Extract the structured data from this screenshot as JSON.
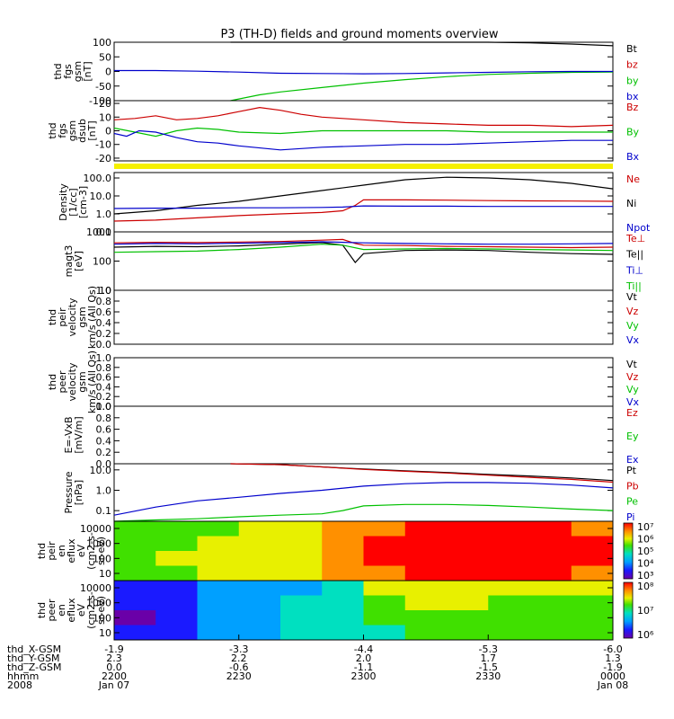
{
  "title": "P3 (TH-D) fields and ground moments overview",
  "chart_data": [
    {
      "type": "line",
      "ylabel": [
        "thd",
        "fgs",
        "gsm",
        "[nT]"
      ],
      "yticks": [
        "100",
        "50",
        "0",
        "-50",
        "-100"
      ],
      "ylim": [
        -100,
        100
      ],
      "yscale": "linear",
      "series": [
        {
          "name": "Bt",
          "color": "#000000",
          "x": [
            2228,
            2240,
            2250,
            2300,
            2310,
            2320,
            2330,
            2340,
            2350,
            2400
          ],
          "y": [
            100,
            100,
            100,
            100,
            100,
            100,
            100,
            98,
            94,
            88
          ]
        },
        {
          "name": "bz",
          "color": "#cc0000",
          "x": [],
          "y": []
        },
        {
          "name": "by",
          "color": "#00c000",
          "x": [
            2228,
            2235,
            2240,
            2250,
            2300,
            2310,
            2320,
            2330,
            2340,
            2350,
            2400
          ],
          "y": [
            -100,
            -80,
            -70,
            -55,
            -40,
            -28,
            -18,
            -10,
            -6,
            -3,
            -2
          ]
        },
        {
          "name": "bx",
          "color": "#0000cc",
          "x": [
            2200,
            2210,
            2220,
            2230,
            2240,
            2250,
            2300,
            2310,
            2320,
            2330,
            2340,
            2350,
            2400
          ],
          "y": [
            3,
            3,
            1,
            -2,
            -6,
            -7,
            -8,
            -7,
            -5,
            -3,
            -1,
            0,
            0
          ]
        }
      ]
    },
    {
      "type": "line",
      "ylabel": [
        "thd",
        "fgs",
        "gsm",
        "dsub",
        "[nT]"
      ],
      "yticks": [
        "20",
        "10",
        "0",
        "-10",
        "-20"
      ],
      "ylim": [
        -22,
        22
      ],
      "yscale": "linear",
      "series": [
        {
          "name": "Bz",
          "color": "#cc0000",
          "x": [
            2200,
            2205,
            2210,
            2215,
            2220,
            2225,
            2230,
            2235,
            2240,
            2245,
            2250,
            2255,
            2300,
            2310,
            2320,
            2330,
            2340,
            2350,
            2400
          ],
          "y": [
            8,
            9,
            11,
            8,
            9,
            11,
            14,
            17,
            15,
            12,
            10,
            9,
            8,
            6,
            5,
            4,
            4,
            3,
            4
          ]
        },
        {
          "name": "By",
          "color": "#00c000",
          "x": [
            2200,
            2205,
            2210,
            2215,
            2220,
            2225,
            2230,
            2240,
            2250,
            2300,
            2310,
            2320,
            2330,
            2340,
            2350,
            2400
          ],
          "y": [
            2,
            -1,
            -4,
            0,
            2,
            1,
            -1,
            -2,
            0,
            0,
            0,
            0,
            -1,
            -1,
            -1,
            -1
          ]
        },
        {
          "name": "Bx",
          "color": "#0000cc",
          "x": [
            2200,
            2203,
            2206,
            2210,
            2215,
            2220,
            2225,
            2230,
            2240,
            2250,
            2300,
            2310,
            2320,
            2330,
            2340,
            2350,
            2400
          ],
          "y": [
            -2,
            -4,
            0,
            -1,
            -5,
            -8,
            -9,
            -11,
            -14,
            -12,
            -11,
            -10,
            -10,
            -9,
            -8,
            -7,
            -7
          ]
        }
      ]
    },
    {
      "type": "line",
      "ylabel": [
        "Density",
        "[1/cc]",
        "[cm-3]"
      ],
      "yticks": [
        "100.0",
        "10.0",
        "1.0",
        "0.1"
      ],
      "ylim": [
        0.1,
        200
      ],
      "yscale": "log",
      "series": [
        {
          "name": "Ne",
          "color": "#cc0000",
          "x": [
            2200,
            2210,
            2220,
            2230,
            2240,
            2250,
            2255,
            2258,
            2300,
            2310,
            2320,
            2330,
            2340,
            2350,
            2400
          ],
          "y": [
            0.4,
            0.45,
            0.6,
            0.8,
            1.0,
            1.2,
            1.5,
            3,
            6,
            6,
            5.8,
            5.5,
            5.3,
            5.2,
            5
          ]
        },
        {
          "name": "Ni",
          "color": "#000000",
          "x": [
            2200,
            2210,
            2220,
            2230,
            2240,
            2250,
            2300,
            2310,
            2320,
            2330,
            2340,
            2350,
            2400
          ],
          "y": [
            1.0,
            1.5,
            3,
            5,
            10,
            20,
            40,
            80,
            110,
            100,
            80,
            50,
            25
          ]
        },
        {
          "name": "Npot",
          "color": "#0000cc",
          "x": [
            2200,
            2210,
            2220,
            2230,
            2240,
            2250,
            2255,
            2300,
            2310,
            2320,
            2330,
            2340,
            2350,
            2400
          ],
          "y": [
            2.0,
            2.1,
            2.1,
            2.2,
            2.2,
            2.3,
            2.4,
            2.8,
            2.7,
            2.7,
            2.6,
            2.6,
            2.6,
            2.6
          ]
        }
      ]
    },
    {
      "type": "line",
      "ylabel": [
        "magt3",
        "[eV]"
      ],
      "yticks": [
        "1000",
        "100",
        "10"
      ],
      "ylim": [
        10,
        1000
      ],
      "yscale": "log",
      "series": [
        {
          "name": "Te⊥",
          "color": "#cc0000",
          "x": [
            2200,
            2210,
            2220,
            2230,
            2240,
            2250,
            2255,
            2258,
            2300,
            2310,
            2320,
            2330,
            2340,
            2350,
            2400
          ],
          "y": [
            420,
            440,
            430,
            450,
            470,
            520,
            550,
            400,
            350,
            340,
            320,
            310,
            300,
            290,
            300
          ]
        },
        {
          "name": "Te||",
          "color": "#000000",
          "x": [
            2200,
            2210,
            2220,
            2230,
            2240,
            2250,
            2255,
            2258,
            2300,
            2310,
            2320,
            2330,
            2340,
            2350,
            2400
          ],
          "y": [
            300,
            320,
            310,
            330,
            380,
            430,
            350,
            90,
            180,
            230,
            240,
            230,
            200,
            180,
            170
          ]
        },
        {
          "name": "Ti⊥",
          "color": "#0000cc",
          "x": [
            2200,
            2210,
            2220,
            2230,
            2240,
            2250,
            2300,
            2310,
            2320,
            2330,
            2340,
            2350,
            2400
          ],
          "y": [
            380,
            400,
            390,
            410,
            430,
            460,
            420,
            400,
            390,
            380,
            380,
            390,
            400
          ]
        },
        {
          "name": "Ti||",
          "color": "#00c000",
          "x": [
            2200,
            2210,
            2220,
            2230,
            2240,
            2250,
            2255,
            2300,
            2310,
            2320,
            2330,
            2340,
            2350,
            2400
          ],
          "y": [
            200,
            210,
            220,
            250,
            300,
            380,
            350,
            250,
            260,
            270,
            260,
            250,
            240,
            230
          ]
        }
      ]
    },
    {
      "type": "line",
      "ylabel": [
        "thd",
        "peir",
        "velocity",
        "gsm",
        "km/s (All Qs)"
      ],
      "yticks": [
        "1.0",
        "0.8",
        "0.6",
        "0.4",
        "0.2",
        "0.0"
      ],
      "ylim": [
        0,
        1
      ],
      "yscale": "linear",
      "series": [
        {
          "name": "Vt",
          "color": "#000000",
          "x": [],
          "y": []
        },
        {
          "name": "Vz",
          "color": "#cc0000",
          "x": [],
          "y": []
        },
        {
          "name": "Vy",
          "color": "#00c000",
          "x": [],
          "y": []
        },
        {
          "name": "Vx",
          "color": "#0000cc",
          "x": [],
          "y": []
        }
      ]
    },
    {
      "type": "line",
      "ylabel": [
        "thd",
        "peer",
        "velocity",
        "gsm",
        "km/s (All Qs)"
      ],
      "yticks": [
        "1.0",
        "0.8",
        "0.6",
        "0.4",
        "0.2",
        "0.0"
      ],
      "ylim": [
        0,
        1
      ],
      "yscale": "linear",
      "series": [
        {
          "name": "Vt",
          "color": "#000000",
          "x": [],
          "y": []
        },
        {
          "name": "Vz",
          "color": "#cc0000",
          "x": [],
          "y": []
        },
        {
          "name": "Vy",
          "color": "#00c000",
          "x": [],
          "y": []
        },
        {
          "name": "Vx",
          "color": "#0000cc",
          "x": [],
          "y": []
        }
      ]
    },
    {
      "type": "line",
      "ylabel": [
        "E=-VxB",
        "[mV/m]"
      ],
      "yticks": [
        "1.0",
        "0.8",
        "0.6",
        "0.4",
        "0.2",
        "0.0"
      ],
      "ylim": [
        0,
        1
      ],
      "yscale": "linear",
      "series": [
        {
          "name": "Ez",
          "color": "#cc0000",
          "x": [],
          "y": []
        },
        {
          "name": "Ey",
          "color": "#00c000",
          "x": [],
          "y": []
        },
        {
          "name": "Ex",
          "color": "#0000cc",
          "x": [],
          "y": []
        }
      ]
    },
    {
      "type": "line",
      "ylabel": [
        "Pressure",
        "[nPa]"
      ],
      "yticks": [
        "10.0",
        "1.0",
        "0.1"
      ],
      "ylim": [
        0.03,
        20
      ],
      "yscale": "log",
      "series": [
        {
          "name": "Pt",
          "color": "#000000",
          "x": [
            2228,
            2240,
            2250,
            2300,
            2310,
            2320,
            2330,
            2340,
            2350,
            2400
          ],
          "y": [
            22,
            18,
            14,
            11,
            9,
            7.5,
            6,
            5,
            4,
            3
          ]
        },
        {
          "name": "Pb",
          "color": "#cc0000",
          "x": [
            2228,
            2240,
            2250,
            2300,
            2310,
            2320,
            2330,
            2340,
            2350,
            2400
          ],
          "y": [
            22,
            18,
            14,
            10.5,
            8.5,
            7,
            5.5,
            4.3,
            3.4,
            2.5
          ]
        },
        {
          "name": "Pe",
          "color": "#00c000",
          "x": [
            2200,
            2210,
            2220,
            2230,
            2240,
            2250,
            2255,
            2300,
            2310,
            2320,
            2330,
            2340,
            2350,
            2400
          ],
          "y": [
            0.03,
            0.035,
            0.04,
            0.05,
            0.06,
            0.07,
            0.1,
            0.17,
            0.2,
            0.2,
            0.18,
            0.15,
            0.12,
            0.1
          ]
        },
        {
          "name": "Pi",
          "color": "#0000cc",
          "x": [
            2200,
            2210,
            2220,
            2230,
            2240,
            2250,
            2300,
            2310,
            2320,
            2330,
            2340,
            2350,
            2400
          ],
          "y": [
            0.06,
            0.15,
            0.3,
            0.45,
            0.7,
            1.0,
            1.6,
            2.1,
            2.4,
            2.4,
            2.2,
            1.8,
            1.3
          ]
        }
      ]
    },
    {
      "type": "heatmap",
      "ylabel": [
        "thd",
        "peir",
        "en",
        "eflux",
        "eV",
        "(cm2-s-",
        "sr-eV)"
      ],
      "yticks": [
        "10000",
        "1000",
        "100",
        "10"
      ],
      "colorbar_ticks": [
        "10⁷",
        "10⁶",
        "10⁵",
        "10⁴",
        "10³"
      ],
      "zlog_range": [
        2.8,
        7.2
      ],
      "x": [
        2200,
        2210,
        2220,
        2230,
        2240,
        2250,
        2300,
        2310,
        2320,
        2330,
        2340,
        2350,
        2400
      ],
      "y_levels": [
        "10000",
        "1000",
        "100",
        "10"
      ],
      "z_log": [
        [
          5.2,
          5.4,
          5.6,
          5.9,
          6.1,
          6.6,
          6.8,
          6.9,
          7.0,
          6.9,
          6.9,
          6.8,
          6.6
        ],
        [
          5.4,
          5.6,
          5.8,
          6.0,
          6.2,
          6.7,
          6.9,
          7.0,
          7.0,
          7.0,
          7.0,
          6.9,
          6.8
        ],
        [
          5.5,
          5.7,
          5.9,
          6.0,
          6.2,
          6.7,
          6.9,
          6.9,
          7.0,
          6.9,
          6.9,
          6.9,
          6.8
        ],
        [
          5.3,
          5.5,
          5.8,
          6.0,
          6.1,
          6.6,
          6.8,
          6.9,
          6.9,
          6.9,
          6.9,
          6.8,
          6.7
        ]
      ]
    },
    {
      "type": "heatmap",
      "ylabel": [
        "thd",
        "peer",
        "en",
        "eflux",
        "eV",
        "(cm2-s-",
        "sr-eV)"
      ],
      "yticks": [
        "10000",
        "1000",
        "100",
        "10"
      ],
      "colorbar_ticks": [
        "10⁸",
        "10⁷",
        "10⁶"
      ],
      "zlog_range": [
        5.6,
        8.6
      ],
      "x": [
        2200,
        2210,
        2220,
        2230,
        2240,
        2250,
        2300,
        2310,
        2320,
        2330,
        2340,
        2350,
        2400
      ],
      "y_levels": [
        "10000",
        "1000",
        "100",
        "10"
      ],
      "z_log": [
        [
          6.0,
          6.1,
          6.3,
          6.5,
          6.6,
          6.8,
          7.8,
          7.9,
          7.9,
          7.8,
          7.8,
          7.7,
          7.6
        ],
        [
          6.0,
          6.1,
          6.4,
          6.6,
          6.7,
          6.8,
          7.4,
          7.6,
          7.6,
          7.5,
          7.4,
          7.3,
          7.3
        ],
        [
          5.8,
          5.9,
          6.3,
          6.6,
          6.7,
          6.8,
          7.3,
          7.5,
          7.5,
          7.4,
          7.3,
          7.3,
          7.4
        ],
        [
          6.2,
          6.2,
          6.4,
          6.6,
          6.7,
          6.8,
          7.0,
          7.2,
          7.2,
          7.1,
          7.1,
          7.1,
          7.2
        ]
      ]
    }
  ],
  "xaxis": {
    "x": [
      2200,
      2230,
      2300,
      2330,
      2400
    ],
    "rows": [
      {
        "label": "thd_X-GSM",
        "values": [
          "-1.9",
          "-3.3",
          "-4.4",
          "-5.3",
          "-6.0"
        ]
      },
      {
        "label": "thd_Y-GSM",
        "values": [
          "2.3",
          "2.2",
          "2.0",
          "1.7",
          "1.3"
        ]
      },
      {
        "label": "thd_Z-GSM",
        "values": [
          "0.0",
          "-0.6",
          "-1.1",
          "-1.5",
          "-1.9"
        ]
      },
      {
        "label": "hhmm",
        "values": [
          "2200",
          "2230",
          "2300",
          "2330",
          "0000"
        ]
      },
      {
        "label": "2008",
        "values": [
          "Jan 07",
          "",
          "",
          "",
          "Jan 08"
        ]
      }
    ]
  }
}
